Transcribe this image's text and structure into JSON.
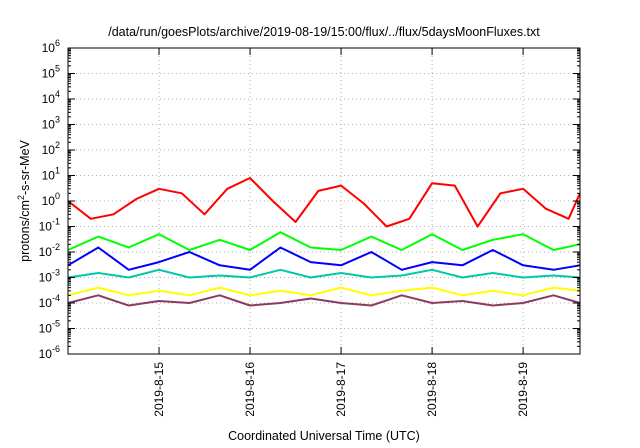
{
  "chart_data": {
    "type": "line",
    "title": "/data/run/goesPlots/archive/2019-08-19/15:00/flux/../flux/5daysMoonFluxes.txt",
    "xlabel": "Coordinated Universal Time (UTC)",
    "ylabel": "protons/cm2-s-sr-MeV",
    "y_scale": "log",
    "ylim": [
      1e-06,
      1000000.0
    ],
    "xlim": [
      "2019-08-14 00:00",
      "2019-08-19 15:00"
    ],
    "grid": true,
    "x_ticks": [
      "2019-8-15",
      "2019-8-16",
      "2019-8-17",
      "2019-8-18",
      "2019-8-19"
    ],
    "y_ticks": [
      {
        "base": "10",
        "exp": "6"
      },
      {
        "base": "10",
        "exp": "5"
      },
      {
        "base": "10",
        "exp": "4"
      },
      {
        "base": "10",
        "exp": "3"
      },
      {
        "base": "10",
        "exp": "2"
      },
      {
        "base": "10",
        "exp": "1"
      },
      {
        "base": "10",
        "exp": "0"
      },
      {
        "base": "10",
        "exp": "-1"
      },
      {
        "base": "10",
        "exp": "-2"
      },
      {
        "base": "10",
        "exp": "-3"
      },
      {
        "base": "10",
        "exp": "-4"
      },
      {
        "base": "10",
        "exp": "-5"
      },
      {
        "base": "10",
        "exp": "-6"
      }
    ],
    "series": [
      {
        "color": "#ff0000",
        "x": [
          "2019-08-14 00:00",
          "2019-08-14 06:00",
          "2019-08-14 12:00",
          "2019-08-14 18:00",
          "2019-08-15 00:00",
          "2019-08-15 06:00",
          "2019-08-15 12:00",
          "2019-08-15 18:00",
          "2019-08-16 00:00",
          "2019-08-16 06:00",
          "2019-08-16 12:00",
          "2019-08-16 18:00",
          "2019-08-17 00:00",
          "2019-08-17 06:00",
          "2019-08-17 12:00",
          "2019-08-17 18:00",
          "2019-08-18 00:00",
          "2019-08-18 06:00",
          "2019-08-18 12:00",
          "2019-08-18 18:00",
          "2019-08-19 00:00",
          "2019-08-19 06:00",
          "2019-08-19 12:00",
          "2019-08-19 15:00"
        ],
        "values": [
          1.0,
          0.2,
          0.3,
          1.2,
          3.0,
          2.0,
          0.3,
          3.0,
          8.0,
          1.0,
          0.15,
          2.5,
          4.0,
          0.8,
          0.1,
          0.2,
          5.0,
          4.0,
          0.1,
          2.0,
          3.0,
          0.5,
          0.2,
          2.0
        ]
      },
      {
        "color": "#00ff00",
        "x": [
          "2019-08-14 00:00",
          "2019-08-14 08:00",
          "2019-08-14 16:00",
          "2019-08-15 00:00",
          "2019-08-15 08:00",
          "2019-08-15 16:00",
          "2019-08-16 00:00",
          "2019-08-16 08:00",
          "2019-08-16 16:00",
          "2019-08-17 00:00",
          "2019-08-17 08:00",
          "2019-08-17 16:00",
          "2019-08-18 00:00",
          "2019-08-18 08:00",
          "2019-08-18 16:00",
          "2019-08-19 00:00",
          "2019-08-19 08:00",
          "2019-08-19 15:00"
        ],
        "values": [
          0.012,
          0.04,
          0.015,
          0.05,
          0.012,
          0.03,
          0.012,
          0.06,
          0.015,
          0.012,
          0.04,
          0.012,
          0.05,
          0.012,
          0.03,
          0.05,
          0.012,
          0.02
        ]
      },
      {
        "color": "#0000ff",
        "x": [
          "2019-08-14 00:00",
          "2019-08-14 08:00",
          "2019-08-14 16:00",
          "2019-08-15 00:00",
          "2019-08-15 08:00",
          "2019-08-15 16:00",
          "2019-08-16 00:00",
          "2019-08-16 08:00",
          "2019-08-16 16:00",
          "2019-08-17 00:00",
          "2019-08-17 08:00",
          "2019-08-17 16:00",
          "2019-08-18 00:00",
          "2019-08-18 08:00",
          "2019-08-18 16:00",
          "2019-08-19 00:00",
          "2019-08-19 08:00",
          "2019-08-19 15:00"
        ],
        "values": [
          0.003,
          0.015,
          0.002,
          0.004,
          0.01,
          0.003,
          0.002,
          0.015,
          0.004,
          0.003,
          0.01,
          0.002,
          0.004,
          0.003,
          0.012,
          0.003,
          0.002,
          0.003
        ]
      },
      {
        "color": "#00c8a8",
        "x": [
          "2019-08-14 00:00",
          "2019-08-14 08:00",
          "2019-08-14 16:00",
          "2019-08-15 00:00",
          "2019-08-15 08:00",
          "2019-08-15 16:00",
          "2019-08-16 00:00",
          "2019-08-16 08:00",
          "2019-08-16 16:00",
          "2019-08-17 00:00",
          "2019-08-17 08:00",
          "2019-08-17 16:00",
          "2019-08-18 00:00",
          "2019-08-18 08:00",
          "2019-08-18 16:00",
          "2019-08-19 00:00",
          "2019-08-19 08:00",
          "2019-08-19 15:00"
        ],
        "values": [
          0.001,
          0.0015,
          0.001,
          0.002,
          0.001,
          0.0012,
          0.001,
          0.002,
          0.001,
          0.0015,
          0.001,
          0.0012,
          0.002,
          0.001,
          0.0015,
          0.001,
          0.0012,
          0.001
        ]
      },
      {
        "color": "#ffff00",
        "x": [
          "2019-08-14 00:00",
          "2019-08-14 08:00",
          "2019-08-14 16:00",
          "2019-08-15 00:00",
          "2019-08-15 08:00",
          "2019-08-15 16:00",
          "2019-08-16 00:00",
          "2019-08-16 08:00",
          "2019-08-16 16:00",
          "2019-08-17 00:00",
          "2019-08-17 08:00",
          "2019-08-17 16:00",
          "2019-08-18 00:00",
          "2019-08-18 08:00",
          "2019-08-18 16:00",
          "2019-08-19 00:00",
          "2019-08-19 08:00",
          "2019-08-19 15:00"
        ],
        "values": [
          0.0002,
          0.0004,
          0.0002,
          0.0003,
          0.0002,
          0.0004,
          0.0002,
          0.0003,
          0.0002,
          0.0004,
          0.0002,
          0.0003,
          0.0004,
          0.0002,
          0.0003,
          0.0002,
          0.0004,
          0.0003
        ]
      },
      {
        "color": "#8b3a62",
        "x": [
          "2019-08-14 00:00",
          "2019-08-14 08:00",
          "2019-08-14 16:00",
          "2019-08-15 00:00",
          "2019-08-15 08:00",
          "2019-08-15 16:00",
          "2019-08-16 00:00",
          "2019-08-16 08:00",
          "2019-08-16 16:00",
          "2019-08-17 00:00",
          "2019-08-17 08:00",
          "2019-08-17 16:00",
          "2019-08-18 00:00",
          "2019-08-18 08:00",
          "2019-08-18 16:00",
          "2019-08-19 00:00",
          "2019-08-19 08:00",
          "2019-08-19 15:00"
        ],
        "values": [
          0.0001,
          0.0002,
          8e-05,
          0.00012,
          0.0001,
          0.0002,
          8e-05,
          0.0001,
          0.00015,
          0.0001,
          8e-05,
          0.0002,
          0.0001,
          0.00012,
          8e-05,
          0.0001,
          0.0002,
          0.0001
        ]
      }
    ]
  }
}
